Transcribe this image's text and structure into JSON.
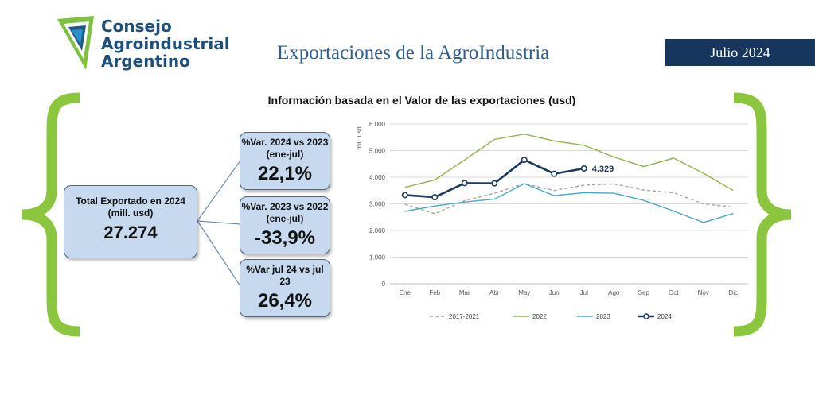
{
  "org": {
    "line1": "Consejo",
    "line2": "Agroindustrial",
    "line3": "Argentino"
  },
  "header": {
    "title": "Exportaciones de la AgroIndustria",
    "date": "Julio 2024"
  },
  "colors": {
    "navy": "#17365d",
    "brace_green": "#8cc63f",
    "box_fill": "#c6d9ef",
    "brand_blue": "#1d4f7c"
  },
  "summary": {
    "total": {
      "label": "Total Exportado en 2024 (mill. usd)",
      "value": "27.274"
    },
    "var1": {
      "label": "%Var. 2024 vs 2023 (ene-jul)",
      "value": "22,1%"
    },
    "var2": {
      "label": "%Var. 2023 vs 2022 (ene-jul)",
      "value": "-33,9%"
    },
    "var3": {
      "label": "%Var jul 24 vs jul 23",
      "value": "26,4%"
    }
  },
  "chart_data": {
    "type": "line",
    "title": "Información basada en el Valor de las exportaciones (usd)",
    "ylabel": "mill. usd",
    "xlabel": "",
    "ylim": [
      0,
      6000
    ],
    "yticks": [
      "0",
      "1.000",
      "2.000",
      "3.000",
      "4.000",
      "5.000",
      "6.000"
    ],
    "categories": [
      "Ene",
      "Feb",
      "Mar",
      "Abr",
      "May",
      "Jun",
      "Jul",
      "Ago",
      "Sep",
      "Oct",
      "Nov",
      "Dic"
    ],
    "grid": "horizontal",
    "legend_position": "bottom",
    "series": [
      {
        "name": "2017-2021",
        "color": "#a6a6a6",
        "style": "dashed",
        "values": [
          2980,
          2630,
          3120,
          3400,
          3760,
          3500,
          3700,
          3750,
          3520,
          3420,
          3000,
          2880
        ]
      },
      {
        "name": "2022",
        "color": "#92b152",
        "style": "solid",
        "values": [
          3620,
          3900,
          4650,
          5420,
          5620,
          5360,
          5200,
          4760,
          4400,
          4720,
          4150,
          3500
        ]
      },
      {
        "name": "2023",
        "color": "#4aa8c8",
        "style": "solid",
        "values": [
          2720,
          2920,
          3070,
          3180,
          3760,
          3310,
          3420,
          3400,
          3130,
          2730,
          2300,
          2640
        ]
      },
      {
        "name": "2024",
        "color": "#1f3a5f",
        "style": "marker",
        "values": [
          3330,
          3250,
          3780,
          3770,
          4650,
          4130,
          4329,
          null,
          null,
          null,
          null,
          null
        ]
      }
    ],
    "annotation": {
      "label": "4.329",
      "series": "2024",
      "category": "Jul"
    }
  }
}
